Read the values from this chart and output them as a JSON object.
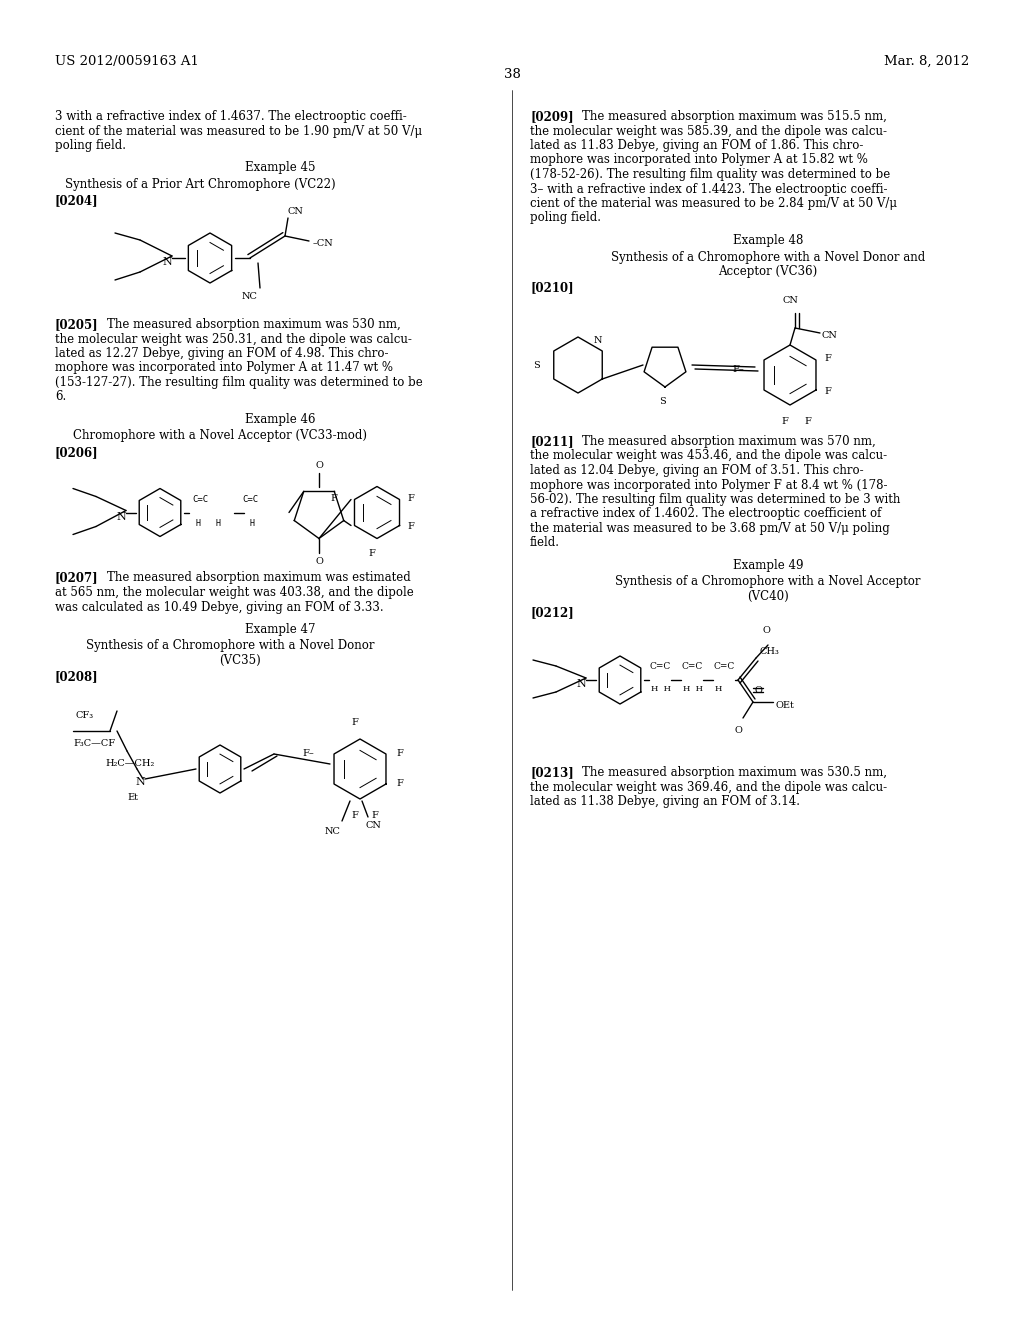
{
  "page_header_left": "US 2012/0059163 A1",
  "page_header_right": "Mar. 8, 2012",
  "page_number": "38",
  "background_color": "#ffffff",
  "font_size_body": 8.5,
  "font_size_header": 9.5,
  "font_size_example": 9.5
}
